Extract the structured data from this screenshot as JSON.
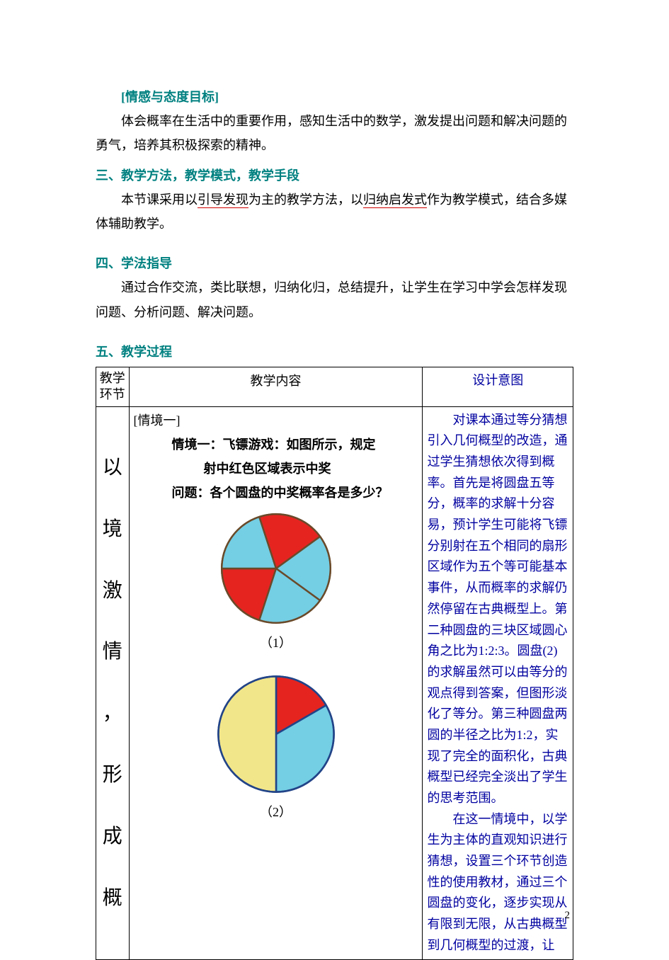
{
  "headings": {
    "emotion": "[情感与态度目标]",
    "method": "三、教学方法，教学模式，教学手段",
    "study": "四、学法指导",
    "process": "五、教学过程"
  },
  "paragraphs": {
    "emotion_body": "体会概率在生活中的重要作用，感知生活中的数学，激发提出问题和解决问题的勇气，培养其积极探索的精神。",
    "method_pre": "本节课采用以",
    "method_u1": "引导发现",
    "method_mid1": "为主的教学方法，以",
    "method_u2": "归纳启发式",
    "method_mid2": "作为教学模式，结合多媒体辅助教学。",
    "study_body": "通过合作交流，类比联想，归纳化归，总结提升，让学生在学习中学会怎样发现问题、分析问题、解决问题。"
  },
  "table": {
    "hdr_stage": "教学环节",
    "hdr_content": "教学内容",
    "hdr_design": "设计意图",
    "stage_text": "以\n\n境\n\n激\n\n情\n\n，\n\n形\n\n成\n\n概",
    "situation_tag": "[情境一]",
    "line1": "情境一：飞镖游戏：如图所示，规定",
    "line2": "射中红色区域表示中奖",
    "line3": "问题：各个圆盘的中奖概率各是多少？",
    "label1": "（1）",
    "label2": "（2）",
    "design_p1": "对课本通过等分猜想引入几何概型的改造，通过学生猜想依次得到概率。首先是将圆盘五等分，概率的求解十分容易，预计学生可能将飞镖分别射在五个相同的扇形区域作为五个等可能基本事件，从而概率的求解仍然停留在古典概型上。第二种圆盘的三块区域圆心角之比为1:2:3。圆盘(2)的求解虽然可以由等分的观点得到答案，但图形淡化了等分。第三种圆盘两圆的半径之比为1:2，实现了完全的面积化，古典概型已经完全淡出了学生的思考范围。",
    "design_p2": "在这一情境中，以学生为主体的直观知识进行猜想，设置三个环节创造性的使用教材，通过三个圆盘的变化，逐步实现从有限到无限，从古典概型到几何概型的过渡，让"
  },
  "chart1": {
    "type": "pie",
    "size": 160,
    "slices": [
      {
        "color": "#e52420",
        "start": 198,
        "end": 270
      },
      {
        "color": "#74cee4",
        "start": 270,
        "end": 342
      },
      {
        "color": "#e52420",
        "start": 342,
        "end": 414
      },
      {
        "color": "#74cee4",
        "start": 54,
        "end": 126
      },
      {
        "color": "#74cee4",
        "start": 126,
        "end": 198
      }
    ],
    "stroke": "#6a4a2a",
    "stroke_width": 1.5
  },
  "chart2": {
    "type": "pie",
    "size": 170,
    "slices": [
      {
        "color": "#e52420",
        "start": 0,
        "end": 60
      },
      {
        "color": "#74cee4",
        "start": 60,
        "end": 180
      },
      {
        "color": "#f2e68a",
        "start": 180,
        "end": 360
      }
    ],
    "stroke": "#224488",
    "stroke_width": 1.5
  },
  "page_number": "2"
}
